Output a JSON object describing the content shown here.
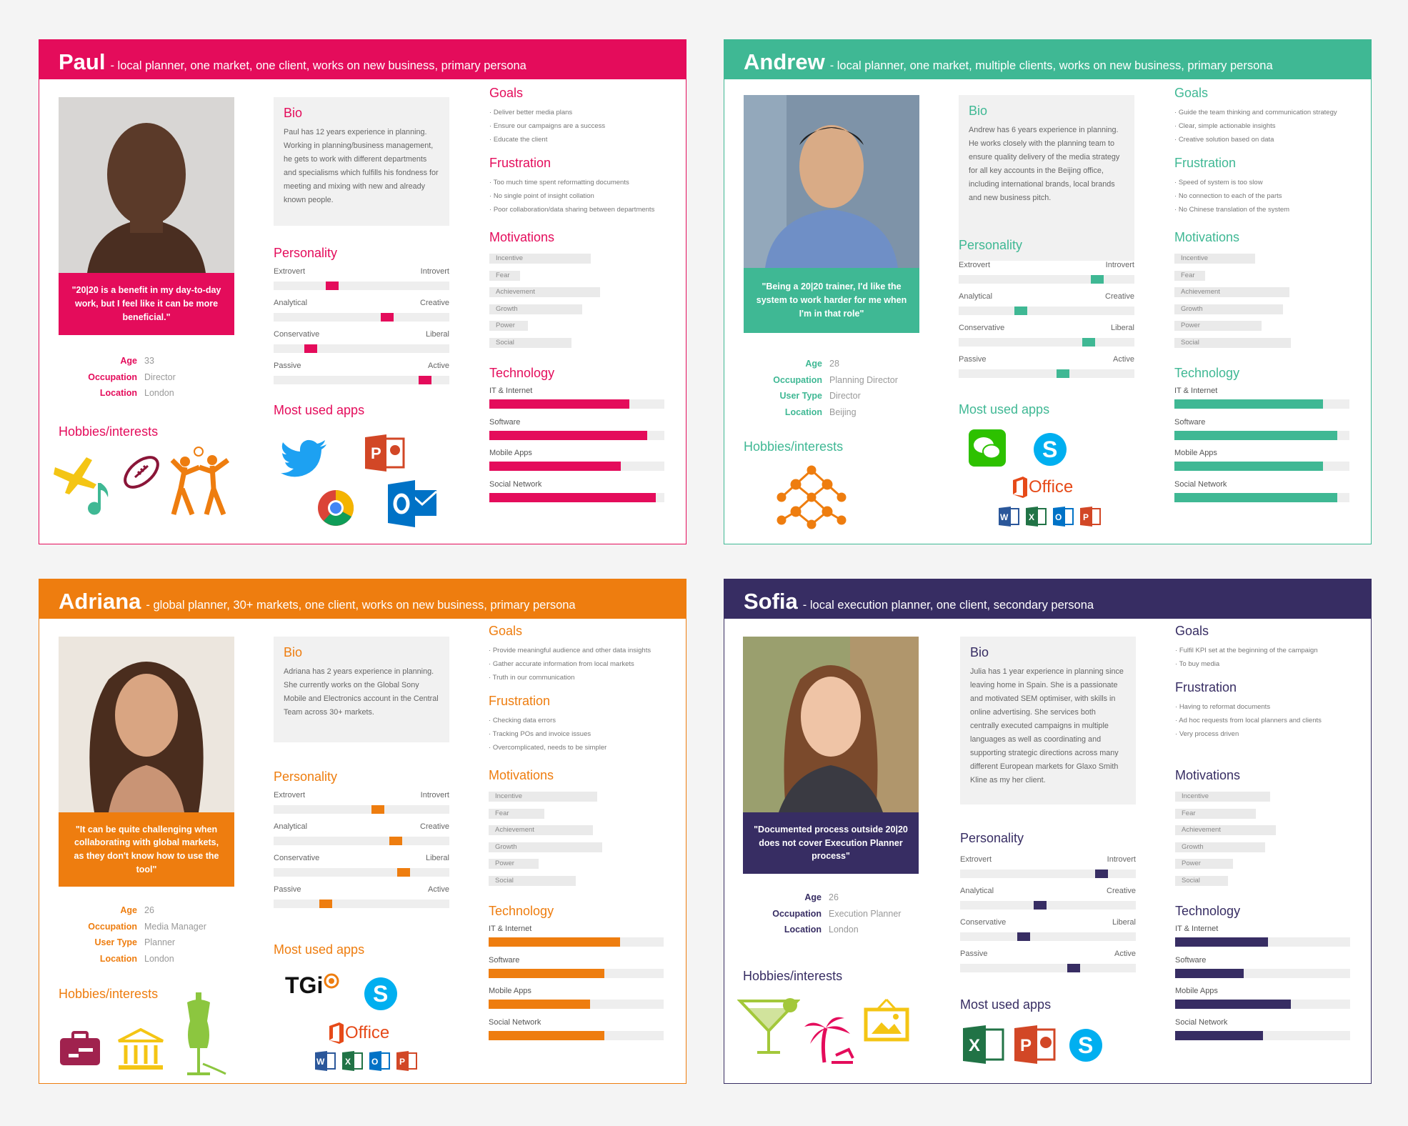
{
  "colors": {
    "paul": "#e40c5b",
    "andrew": "#3fb894",
    "adriana": "#ee7d0f",
    "sofia": "#372d63"
  },
  "icons": {
    "paul": {
      "hobbies": [
        "airplane-icon",
        "music-note-icon",
        "football-icon",
        "dancers-icon"
      ],
      "apps": [
        "twitter-icon",
        "powerpoint-icon",
        "chrome-icon",
        "outlook-icon"
      ]
    },
    "andrew": {
      "hobbies": [
        "network-molecule-icon"
      ],
      "apps": [
        "wechat-icon",
        "skype-icon",
        "office-icon",
        "word-icon",
        "excel-icon",
        "outlook-icon",
        "powerpoint-icon"
      ]
    },
    "adriana": {
      "hobbies": [
        "suitcase-icon",
        "museum-icon",
        "mannequin-icon"
      ],
      "apps": [
        "tgi-icon",
        "skype-icon",
        "office-icon",
        "word-icon",
        "excel-icon",
        "outlook-icon",
        "powerpoint-icon"
      ]
    },
    "sofia": {
      "hobbies": [
        "cocktail-icon",
        "palm-tree-icon",
        "picture-frame-icon"
      ],
      "apps": [
        "excel-icon",
        "powerpoint-icon",
        "skype-icon"
      ]
    }
  },
  "labels": {
    "bio": "Bio",
    "personality": "Personality",
    "apps": "Most used apps",
    "hobbies": "Hobbies/interests",
    "goals": "Goals",
    "frustration": "Frustration",
    "motivations": "Motivations",
    "technology": "Technology",
    "age": "Age",
    "occupation": "Occupation",
    "user_type": "User Type",
    "location": "Location",
    "office": "Office",
    "tgi": "TGi",
    "extrovert": "Extrovert",
    "introvert": "Introvert",
    "analytical": "Analytical",
    "creative": "Creative",
    "conservative": "Conservative",
    "liberal": "Liberal",
    "passive": "Passive",
    "active": "Active",
    "incentive": "Incentive",
    "fear": "Fear",
    "achievement": "Achievement",
    "growth": "Growth",
    "power": "Power",
    "social": "Social",
    "it": "IT & Internet",
    "software": "Software",
    "mobile": "Mobile Apps",
    "social_network": "Social Network"
  },
  "paul": {
    "name": "Paul",
    "desc": "- local planner, one market, one client, works on new business, primary persona",
    "quote": "\"20|20 is a benefit in my day-to-day work, but I feel like it can be more beneficial.\"",
    "age": "33",
    "occupation": "Director",
    "location": "London",
    "bio": "Paul has 12 years experience in planning. Working in planning/business management, he gets to work with different departments and specialisms which fulfills his fondness for meeting and mixing with new and already known people.",
    "goals": [
      "Deliver better media plans",
      "Ensure our campaigns are a success",
      "Educate the client"
    ],
    "frustration": [
      "Too much time spent reformatting documents",
      "No single point of insight collation",
      "Poor collaboration/data sharing between departments"
    ],
    "personality": [
      0.32,
      0.66,
      0.19,
      0.89
    ],
    "motivations": [
      0.77,
      0.23,
      0.84,
      0.7,
      0.29,
      0.62
    ],
    "technology": [
      0.8,
      0.9,
      0.75,
      0.95
    ]
  },
  "andrew": {
    "name": "Andrew",
    "desc": "- local planner, one market, multiple clients, works on new business, primary persona",
    "quote": "\"Being a 20|20 trainer, I'd like the system to work harder for me when I'm in that role\"",
    "age": "28",
    "occupation": "Planning Director",
    "user_type": "Director",
    "location": "Beijing",
    "bio": "Andrew has 6 years experience in planning. He works closely with the planning team to ensure quality delivery of the media strategy for all key accounts in the Beijing office, including international brands, local brands and new business pitch.",
    "goals": [
      "Guide the team thinking and communication strategy",
      "Clear, simple actionable insights",
      "Creative solution based on data"
    ],
    "frustration": [
      "Speed of system is too slow",
      "No connection to each of the parts",
      "No Chinese translation of the system"
    ],
    "personality": [
      0.81,
      0.34,
      0.76,
      0.6
    ],
    "motivations": [
      0.61,
      0.23,
      0.87,
      0.82,
      0.66,
      0.88
    ],
    "technology": [
      0.85,
      0.93,
      0.85,
      0.93
    ]
  },
  "adriana": {
    "name": "Adriana",
    "desc": "- global planner, 30+ markets, one client, works on new business, primary persona",
    "quote": "\"It can be quite challenging when collaborating with global markets, as they don't know how to use the tool\"",
    "age": "26",
    "occupation": "Media Manager",
    "user_type": "Planner",
    "location": "London",
    "bio": "Adriana has 2 years experience in planning. She currently works on the Global Sony Mobile and Electronics account in the Central Team across 30+ markets.",
    "goals": [
      "Provide meaningful audience and other data insights",
      "Gather accurate information from local markets",
      "Truth in our communication"
    ],
    "frustration": [
      "Checking data errors",
      "Tracking POs and invoice issues",
      "Overcomplicated, needs to be simpler"
    ],
    "personality": [
      0.6,
      0.71,
      0.76,
      0.28
    ],
    "motivations": [
      0.82,
      0.42,
      0.79,
      0.86,
      0.38,
      0.66
    ],
    "technology": [
      0.75,
      0.66,
      0.58,
      0.66
    ]
  },
  "sofia": {
    "name": "Sofia",
    "desc": "- local execution planner, one client, secondary persona",
    "quote": "\"Documented process outside 20|20 does not cover Execution Planner process\"",
    "age": "26",
    "occupation": "Execution Planner",
    "location": "London",
    "bio": "Julia has 1 year experience in planning since leaving home in Spain. She is a passionate and motivated SEM optimiser, with skills in online advertising. She services both centrally executed campaigns in multiple languages as well as coordinating and supporting strategic directions across many different European markets for Glaxo Smith Kline as my her client.",
    "goals": [
      "Fulfil KPI set at the beginning of the campaign",
      "To buy media"
    ],
    "frustration": [
      "Having to reformat documents",
      "Ad hoc requests from local planners and clients",
      "Very process driven"
    ],
    "personality": [
      0.83,
      0.45,
      0.35,
      0.66
    ],
    "motivations": [
      0.72,
      0.61,
      0.76,
      0.68,
      0.44,
      0.4
    ],
    "technology": [
      0.53,
      0.39,
      0.66,
      0.5
    ]
  }
}
